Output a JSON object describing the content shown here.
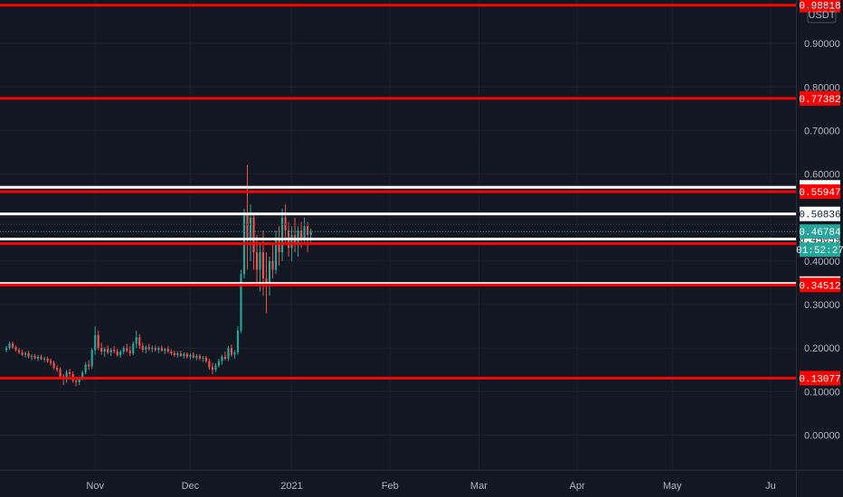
{
  "chart_data": {
    "type": "candlestick",
    "quote_currency": "USDT",
    "y_axis": {
      "ticks": [
        "0.00000",
        "0.10000",
        "0.20000",
        "0.30000",
        "0.40000",
        "0.50000",
        "0.60000",
        "0.70000",
        "0.80000",
        "0.90000"
      ],
      "tick_values": [
        0.0,
        0.1,
        0.2,
        0.3,
        0.4,
        0.5,
        0.6,
        0.7,
        0.8,
        0.9
      ],
      "range": [
        -0.08,
        1.0
      ]
    },
    "x_axis": {
      "labels": [
        "Nov",
        "Dec",
        "2021",
        "Feb",
        "Mar",
        "Apr",
        "May",
        "Ju"
      ],
      "label_days": [
        30,
        60,
        92,
        123,
        151,
        182,
        212,
        243
      ],
      "range_days": [
        0,
        251
      ]
    },
    "horizontal_lines": [
      {
        "value": 0.98818,
        "label": "0.98818",
        "color": "#ff0000"
      },
      {
        "value": 0.77382,
        "label": "0.77382",
        "color": "#ff0000"
      },
      {
        "value": 0.56943,
        "label": "0.56943",
        "color": "#ffffff"
      },
      {
        "value": 0.55947,
        "label": "0.55947",
        "color": "#ff0000"
      },
      {
        "value": 0.50836,
        "label": "0.50836",
        "color": "#ffffff"
      },
      {
        "value": 0.45059,
        "label": "0.45059",
        "color": "#ffffff"
      },
      {
        "value": 0.44,
        "label": "",
        "color": "#ff0000"
      },
      {
        "value": 0.34825,
        "label": "0.34825",
        "color": "#ffffff"
      },
      {
        "value": 0.34512,
        "label": "0.34512",
        "color": "#ff0000"
      },
      {
        "value": 0.13077,
        "label": "0.13077",
        "color": "#ff0000"
      }
    ],
    "current_price": {
      "value": 0.46784,
      "label": "0.46784",
      "countdown": "01:52:27",
      "color": "#26a69a"
    },
    "colors": {
      "up": "#26a69a",
      "down": "#ef5350",
      "background": "#131722",
      "grid": "#1e222d"
    },
    "candles": [
      [
        0.195,
        0.205,
        0.19,
        0.2
      ],
      [
        0.2,
        0.215,
        0.196,
        0.21
      ],
      [
        0.21,
        0.215,
        0.198,
        0.202
      ],
      [
        0.202,
        0.206,
        0.192,
        0.195
      ],
      [
        0.195,
        0.2,
        0.186,
        0.19
      ],
      [
        0.19,
        0.196,
        0.182,
        0.185
      ],
      [
        0.185,
        0.192,
        0.178,
        0.188
      ],
      [
        0.188,
        0.194,
        0.176,
        0.18
      ],
      [
        0.18,
        0.186,
        0.172,
        0.182
      ],
      [
        0.182,
        0.186,
        0.174,
        0.176
      ],
      [
        0.176,
        0.184,
        0.17,
        0.18
      ],
      [
        0.18,
        0.185,
        0.172,
        0.174
      ],
      [
        0.174,
        0.18,
        0.168,
        0.176
      ],
      [
        0.176,
        0.18,
        0.166,
        0.17
      ],
      [
        0.17,
        0.176,
        0.16,
        0.166
      ],
      [
        0.166,
        0.17,
        0.15,
        0.155
      ],
      [
        0.155,
        0.16,
        0.145,
        0.15
      ],
      [
        0.15,
        0.156,
        0.13,
        0.135
      ],
      [
        0.135,
        0.14,
        0.115,
        0.128
      ],
      [
        0.128,
        0.15,
        0.12,
        0.145
      ],
      [
        0.145,
        0.152,
        0.135,
        0.14
      ],
      [
        0.14,
        0.146,
        0.12,
        0.125
      ],
      [
        0.125,
        0.13,
        0.112,
        0.122
      ],
      [
        0.122,
        0.132,
        0.115,
        0.13
      ],
      [
        0.13,
        0.148,
        0.126,
        0.144
      ],
      [
        0.144,
        0.168,
        0.14,
        0.162
      ],
      [
        0.162,
        0.172,
        0.15,
        0.158
      ],
      [
        0.158,
        0.2,
        0.152,
        0.195
      ],
      [
        0.195,
        0.25,
        0.185,
        0.23
      ],
      [
        0.23,
        0.24,
        0.195,
        0.2
      ],
      [
        0.2,
        0.212,
        0.185,
        0.192
      ],
      [
        0.192,
        0.202,
        0.18,
        0.198
      ],
      [
        0.198,
        0.206,
        0.186,
        0.19
      ],
      [
        0.19,
        0.2,
        0.182,
        0.196
      ],
      [
        0.196,
        0.204,
        0.188,
        0.192
      ],
      [
        0.192,
        0.198,
        0.18,
        0.184
      ],
      [
        0.184,
        0.196,
        0.178,
        0.192
      ],
      [
        0.192,
        0.205,
        0.186,
        0.2
      ],
      [
        0.2,
        0.21,
        0.19,
        0.194
      ],
      [
        0.194,
        0.204,
        0.182,
        0.188
      ],
      [
        0.188,
        0.215,
        0.184,
        0.21
      ],
      [
        0.21,
        0.24,
        0.2,
        0.225
      ],
      [
        0.225,
        0.232,
        0.198,
        0.205
      ],
      [
        0.205,
        0.212,
        0.19,
        0.196
      ],
      [
        0.196,
        0.206,
        0.188,
        0.202
      ],
      [
        0.202,
        0.21,
        0.194,
        0.198
      ],
      [
        0.198,
        0.206,
        0.19,
        0.2
      ],
      [
        0.2,
        0.206,
        0.192,
        0.196
      ],
      [
        0.196,
        0.204,
        0.188,
        0.2
      ],
      [
        0.2,
        0.206,
        0.192,
        0.194
      ],
      [
        0.194,
        0.2,
        0.186,
        0.198
      ],
      [
        0.198,
        0.204,
        0.188,
        0.192
      ],
      [
        0.192,
        0.198,
        0.184,
        0.188
      ],
      [
        0.188,
        0.194,
        0.18,
        0.184
      ],
      [
        0.184,
        0.192,
        0.178,
        0.188
      ],
      [
        0.188,
        0.194,
        0.18,
        0.182
      ],
      [
        0.182,
        0.19,
        0.176,
        0.186
      ],
      [
        0.186,
        0.19,
        0.176,
        0.18
      ],
      [
        0.18,
        0.188,
        0.174,
        0.184
      ],
      [
        0.184,
        0.19,
        0.176,
        0.178
      ],
      [
        0.178,
        0.186,
        0.172,
        0.182
      ],
      [
        0.182,
        0.186,
        0.172,
        0.176
      ],
      [
        0.176,
        0.182,
        0.168,
        0.178
      ],
      [
        0.178,
        0.182,
        0.166,
        0.17
      ],
      [
        0.17,
        0.176,
        0.15,
        0.156
      ],
      [
        0.156,
        0.166,
        0.14,
        0.15
      ],
      [
        0.15,
        0.165,
        0.145,
        0.16
      ],
      [
        0.16,
        0.175,
        0.155,
        0.17
      ],
      [
        0.17,
        0.185,
        0.162,
        0.18
      ],
      [
        0.18,
        0.192,
        0.172,
        0.175
      ],
      [
        0.175,
        0.205,
        0.17,
        0.2
      ],
      [
        0.2,
        0.208,
        0.18,
        0.185
      ],
      [
        0.185,
        0.195,
        0.175,
        0.19
      ],
      [
        0.19,
        0.25,
        0.185,
        0.24
      ],
      [
        0.24,
        0.38,
        0.235,
        0.37
      ],
      [
        0.37,
        0.52,
        0.36,
        0.51
      ],
      [
        0.51,
        0.62,
        0.38,
        0.45
      ],
      [
        0.45,
        0.53,
        0.4,
        0.5
      ],
      [
        0.5,
        0.51,
        0.38,
        0.42
      ],
      [
        0.42,
        0.46,
        0.35,
        0.38
      ],
      [
        0.38,
        0.44,
        0.33,
        0.42
      ],
      [
        0.42,
        0.47,
        0.32,
        0.36
      ],
      [
        0.36,
        0.42,
        0.28,
        0.35
      ],
      [
        0.35,
        0.41,
        0.32,
        0.4
      ],
      [
        0.4,
        0.44,
        0.36,
        0.38
      ],
      [
        0.38,
        0.47,
        0.37,
        0.45
      ],
      [
        0.45,
        0.48,
        0.39,
        0.42
      ],
      [
        0.42,
        0.52,
        0.4,
        0.5
      ],
      [
        0.5,
        0.53,
        0.44,
        0.47
      ],
      [
        0.47,
        0.49,
        0.41,
        0.43
      ],
      [
        0.43,
        0.48,
        0.4,
        0.46
      ],
      [
        0.46,
        0.5,
        0.42,
        0.44
      ],
      [
        0.44,
        0.48,
        0.41,
        0.47
      ],
      [
        0.47,
        0.49,
        0.43,
        0.45
      ],
      [
        0.45,
        0.5,
        0.44,
        0.48
      ],
      [
        0.48,
        0.49,
        0.42,
        0.46
      ],
      [
        0.46,
        0.475,
        0.44,
        0.468
      ]
    ]
  }
}
